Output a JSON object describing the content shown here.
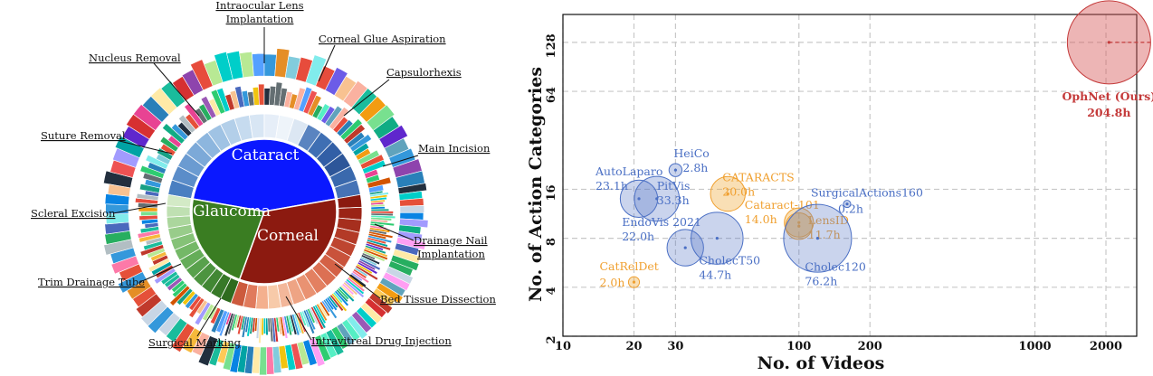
{
  "chart_data": [
    {
      "type": "sunburst",
      "inner": [
        {
          "label": "Cataract",
          "share": 0.55,
          "color": "#0a18ff"
        },
        {
          "label": "Corneal",
          "share": 0.25,
          "color": "#8c1a10"
        },
        {
          "label": "Glaucoma",
          "share": 0.2,
          "color": "#3a7d22"
        }
      ],
      "annotations": [
        {
          "lines": [
            "Intraocular Lens",
            "Implantation"
          ]
        },
        {
          "lines": [
            "Corneal Glue Aspiration"
          ]
        },
        {
          "lines": [
            "Capsulorhexis"
          ]
        },
        {
          "lines": [
            "Main Incision"
          ]
        },
        {
          "lines": [
            "Drainage Nail",
            "Implantation"
          ]
        },
        {
          "lines": [
            "Bed Tissue Dissection"
          ]
        },
        {
          "lines": [
            "Intravitreal Drug Injection"
          ]
        },
        {
          "lines": [
            "Surgical Marking"
          ]
        },
        {
          "lines": [
            "Trim Drainage Tube"
          ]
        },
        {
          "lines": [
            "Scleral Excision"
          ]
        },
        {
          "lines": [
            "Suture Removal"
          ]
        },
        {
          "lines": [
            "Nucleus Removal"
          ]
        }
      ]
    },
    {
      "type": "scatter",
      "xlabel": "No. of Videos",
      "ylabel": "No. of Action Categories",
      "xscale": "log",
      "yscale": "log2",
      "x_ticks": [
        "10",
        "20",
        "30",
        "100",
        "200",
        "1000",
        "2000"
      ],
      "y_ticks": [
        "2",
        "4",
        "8",
        "16",
        "64",
        "128"
      ],
      "grid": true,
      "points": [
        {
          "name": "OphNet (Ours)",
          "hours": "204.8h",
          "x": 2060,
          "y": 128,
          "color": "#c43a3a"
        },
        {
          "name": "HeiCo",
          "hours": "2.8h",
          "x": 30,
          "y": 21,
          "color": "#4a6fc4"
        },
        {
          "name": "AutoLaparo",
          "hours": "23.1h",
          "x": 21,
          "y": 14,
          "color": "#4a6fc4"
        },
        {
          "name": "PitVis",
          "hours": "33.3h",
          "x": 25,
          "y": 14,
          "color": "#4a6fc4"
        },
        {
          "name": "CATARACTS",
          "hours": "20.0h",
          "x": 50,
          "y": 15,
          "color": "#f0a030"
        },
        {
          "name": "SurgicalActions160",
          "hours": "0.2h",
          "x": 160,
          "y": 13,
          "color": "#4a6fc4"
        },
        {
          "name": "Cataract-101",
          "hours": "14.0h",
          "x": 100,
          "y": 10,
          "color": "#f0a030"
        },
        {
          "name": "LensID",
          "hours": "11.7h",
          "x": 100,
          "y": 9.5,
          "color": "#f0a030"
        },
        {
          "name": "EndoVis 2021",
          "hours": "22.0h",
          "x": 33,
          "y": 7,
          "color": "#4a6fc4"
        },
        {
          "name": "CholecT50",
          "hours": "44.7h",
          "x": 45,
          "y": 8,
          "color": "#4a6fc4"
        },
        {
          "name": "Cholec120",
          "hours": "76.2h",
          "x": 120,
          "y": 8,
          "color": "#4a6fc4"
        },
        {
          "name": "CatRelDet",
          "hours": "2.0h",
          "x": 20,
          "y": 4.3,
          "color": "#f0a030"
        }
      ]
    }
  ]
}
